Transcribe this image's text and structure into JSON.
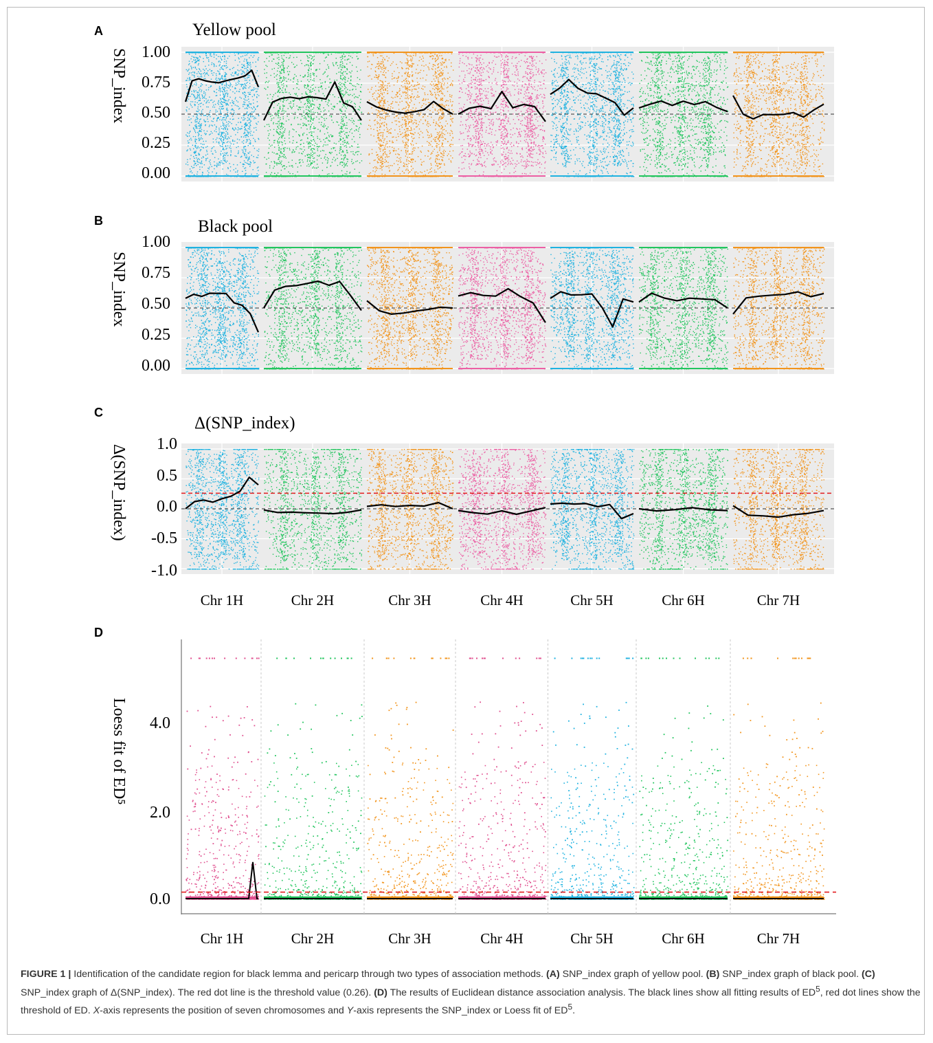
{
  "figure": {
    "caption_label": "FIGURE 1 |",
    "caption_segments": [
      {
        "style": "n",
        "text": " Identification of the candidate region for black lemma and pericarp through two types of association methods. "
      },
      {
        "style": "b",
        "text": "(A)"
      },
      {
        "style": "n",
        "text": " SNP_index graph of yellow pool. "
      },
      {
        "style": "b",
        "text": "(B)"
      },
      {
        "style": "n",
        "text": " SNP_index graph of black pool. "
      },
      {
        "style": "b",
        "text": "(C)"
      },
      {
        "style": "n",
        "text": " SNP_index graph of Δ(SNP_index). The red dot line is the threshold value (0.26). "
      },
      {
        "style": "b",
        "text": "(D)"
      },
      {
        "style": "n",
        "text": " The results of Euclidean distance association analysis. The black lines show all fitting results of ED"
      },
      {
        "style": "sup",
        "text": "5"
      },
      {
        "style": "n",
        "text": ", red dot lines show the threshold of ED. "
      },
      {
        "style": "i",
        "text": "X"
      },
      {
        "style": "n",
        "text": "-axis represents the position of seven chromosomes and "
      },
      {
        "style": "i",
        "text": "Y"
      },
      {
        "style": "n",
        "text": "-axis represents the SNP_index or Loess fit of ED"
      },
      {
        "style": "sup",
        "text": "5"
      },
      {
        "style": "n",
        "text": "."
      }
    ]
  },
  "chart_data": [
    {
      "panel": "A",
      "type": "scatter",
      "title": "Yellow pool",
      "ylabel": "SNP_index",
      "ylim": [
        0,
        1
      ],
      "yticks": [
        "1.00",
        "0.75",
        "0.50",
        "0.25",
        "0.00"
      ],
      "threshold": 0.5,
      "categories": [],
      "colors": [
        "#1fb2e0",
        "#22c55e",
        "#f2941c",
        "#ec5fa4",
        "#1fb2e0",
        "#22c55e",
        "#f2941c"
      ],
      "fit_lines": [
        [
          0.6,
          0.76,
          0.78,
          0.77,
          0.76,
          0.76,
          0.77,
          0.78,
          0.8,
          0.81,
          0.86,
          0.72
        ],
        [
          0.45,
          0.6,
          0.62,
          0.63,
          0.63,
          0.64,
          0.64,
          0.62,
          0.76,
          0.58,
          0.55,
          0.45
        ],
        [
          0.6,
          0.56,
          0.53,
          0.52,
          0.51,
          0.52,
          0.53,
          0.6,
          0.55,
          0.5
        ],
        [
          0.5,
          0.55,
          0.56,
          0.55,
          0.69,
          0.55,
          0.58,
          0.56,
          0.44
        ],
        [
          0.66,
          0.7,
          0.78,
          0.7,
          0.68,
          0.66,
          0.63,
          0.6,
          0.5,
          0.55
        ],
        [
          0.55,
          0.58,
          0.6,
          0.58,
          0.6,
          0.57,
          0.6,
          0.55,
          0.52
        ],
        [
          0.65,
          0.5,
          0.47,
          0.5,
          0.49,
          0.5,
          0.51,
          0.48,
          0.53,
          0.58
        ]
      ]
    },
    {
      "panel": "B",
      "type": "scatter",
      "title": "Black pool",
      "ylabel": "SNP_index",
      "ylim": [
        0,
        1
      ],
      "yticks": [
        "1.00",
        "0.75",
        "0.50",
        "0.25",
        "0.00"
      ],
      "threshold": 0.5,
      "categories": [],
      "colors": [
        "#1fb2e0",
        "#22c55e",
        "#f2941c",
        "#ec5fa4",
        "#1fb2e0",
        "#22c55e",
        "#f2941c"
      ],
      "fit_lines": [
        [
          0.58,
          0.62,
          0.6,
          0.62,
          0.63,
          0.62,
          0.55,
          0.52,
          0.45,
          0.3
        ],
        [
          0.5,
          0.65,
          0.67,
          0.68,
          0.7,
          0.72,
          0.68,
          0.72,
          0.6,
          0.48
        ],
        [
          0.56,
          0.47,
          0.45,
          0.46,
          0.47,
          0.48,
          0.5,
          0.5
        ],
        [
          0.6,
          0.62,
          0.61,
          0.6,
          0.65,
          0.6,
          0.55,
          0.38
        ],
        [
          0.58,
          0.63,
          0.6,
          0.6,
          0.61,
          0.5,
          0.35,
          0.58,
          0.55
        ],
        [
          0.55,
          0.62,
          0.58,
          0.57,
          0.58,
          0.57,
          0.56,
          0.5
        ],
        [
          0.45,
          0.58,
          0.6,
          0.6,
          0.62,
          0.64,
          0.6,
          0.62
        ]
      ]
    },
    {
      "panel": "C",
      "type": "scatter",
      "title": "Δ(SNP_index)",
      "ylabel": "Δ(SNP_index)",
      "ylim": [
        -1,
        1
      ],
      "yticks": [
        "1.0",
        "0.5",
        "0.0",
        "-0.5",
        "-1.0"
      ],
      "threshold": 0.26,
      "baseline": 0,
      "categories": [
        "Chr 1H",
        "Chr 2H",
        "Chr 3H",
        "Chr 4H",
        "Chr 5H",
        "Chr 6H",
        "Chr 7H"
      ],
      "colors": [
        "#1fb2e0",
        "#22c55e",
        "#f2941c",
        "#ec5fa4",
        "#1fb2e0",
        "#22c55e",
        "#f2941c"
      ],
      "fit_lines": [
        [
          0.0,
          0.12,
          0.15,
          0.1,
          0.15,
          0.2,
          0.3,
          0.52,
          0.4
        ],
        [
          -0.02,
          -0.06,
          -0.07,
          -0.06,
          -0.08,
          -0.07,
          -0.05,
          -0.02
        ],
        [
          0.04,
          0.06,
          0.05,
          0.04,
          0.06,
          0.1,
          0.0
        ],
        [
          -0.03,
          -0.08,
          -0.09,
          -0.05,
          -0.08,
          -0.02,
          0.02
        ],
        [
          0.08,
          0.1,
          0.08,
          0.1,
          0.05,
          0.07,
          -0.15,
          -0.08
        ],
        [
          0.0,
          -0.02,
          -0.01,
          0.0,
          -0.01,
          -0.03
        ],
        [
          0.05,
          -0.12,
          -0.1,
          -0.12,
          -0.09,
          -0.06,
          -0.03
        ]
      ]
    },
    {
      "panel": "D",
      "type": "scatter",
      "title": "",
      "ylabel": "Loess fit of ED⁵",
      "ylim": [
        0,
        5.8
      ],
      "yticks": [
        "4.0",
        "2.0",
        "0.0"
      ],
      "ytick_values": [
        4.0,
        2.0,
        0.0
      ],
      "threshold": 0.15,
      "categories": [
        "Chr 1H",
        "Chr 2H",
        "Chr 3H",
        "Chr 4H",
        "Chr 5H",
        "Chr 6H",
        "Chr 7H"
      ],
      "colors": [
        "#e0508f",
        "#22c55e",
        "#f2941c",
        "#e0508f",
        "#1fb2e0",
        "#22c55e",
        "#f2941c"
      ],
      "fit_peak": {
        "chromosome": "Chr 1H",
        "value": 0.85
      }
    }
  ]
}
